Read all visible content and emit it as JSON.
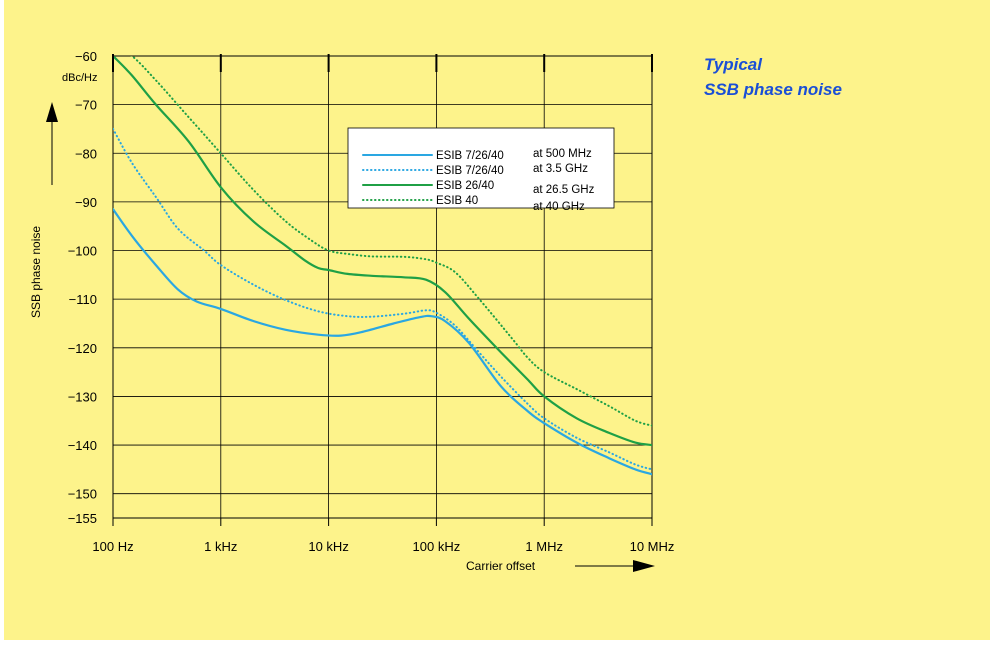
{
  "side_title": {
    "line1": "Typical",
    "line2": "SSB phase noise"
  },
  "colors": {
    "background": "#fdf38b",
    "title": "#1a4fd6",
    "blue": "#2aa7e2",
    "green": "#1fa046",
    "grid": "#000000"
  },
  "chart_data": {
    "type": "line",
    "title": "",
    "xlabel": "Carrier offset",
    "ylabel": "SSB phase noise",
    "yunit": "dBc/Hz",
    "x_scale": "log",
    "xlim": [
      100,
      10000000
    ],
    "ylim": [
      -155,
      -60
    ],
    "x_ticks": [
      {
        "value": 100,
        "label": "100 Hz"
      },
      {
        "value": 1000,
        "label": "1 kHz"
      },
      {
        "value": 10000,
        "label": "10 kHz"
      },
      {
        "value": 100000,
        "label": "100 kHz"
      },
      {
        "value": 1000000,
        "label": "1 MHz"
      },
      {
        "value": 10000000,
        "label": "10 MHz"
      }
    ],
    "y_ticks": [
      -60,
      -70,
      -80,
      -90,
      -100,
      -110,
      -120,
      -130,
      -140,
      -150,
      -155
    ],
    "y_tick_labels": [
      "−60",
      "−70",
      "−80",
      "−90",
      "−100",
      "−110",
      "−120",
      "−130",
      "−140",
      "−150",
      "−155"
    ],
    "grid": true,
    "legend_position": "upper-center",
    "series": [
      {
        "name": "ESIB 7/26/40",
        "note": "at 500 MHz",
        "color": "#2aa7e2",
        "style": "solid",
        "points": [
          [
            100,
            -91.5
          ],
          [
            150,
            -97
          ],
          [
            250,
            -103
          ],
          [
            400,
            -108
          ],
          [
            600,
            -110.5
          ],
          [
            1000,
            -112
          ],
          [
            2000,
            -114.5
          ],
          [
            4000,
            -116.3
          ],
          [
            8000,
            -117.3
          ],
          [
            13000,
            -117.5
          ],
          [
            20000,
            -116.8
          ],
          [
            40000,
            -115
          ],
          [
            70000,
            -113.7
          ],
          [
            90000,
            -113.5
          ],
          [
            120000,
            -114.5
          ],
          [
            200000,
            -119
          ],
          [
            400000,
            -128
          ],
          [
            700000,
            -133
          ],
          [
            1000000,
            -135.5
          ],
          [
            2000000,
            -139.5
          ],
          [
            4000000,
            -142.7
          ],
          [
            7000000,
            -145
          ],
          [
            10000000,
            -146
          ]
        ]
      },
      {
        "name": "ESIB 7/26/40",
        "note": "at 3.5 GHz",
        "color": "#2aa7e2",
        "style": "dotted",
        "points": [
          [
            100,
            -75
          ],
          [
            150,
            -82
          ],
          [
            250,
            -89
          ],
          [
            400,
            -95.5
          ],
          [
            700,
            -100
          ],
          [
            1000,
            -103
          ],
          [
            2000,
            -107
          ],
          [
            4000,
            -110.2
          ],
          [
            8000,
            -112.5
          ],
          [
            15000,
            -113.5
          ],
          [
            25000,
            -113.6
          ],
          [
            50000,
            -113
          ],
          [
            80000,
            -112.3
          ],
          [
            100000,
            -112.8
          ],
          [
            150000,
            -115.5
          ],
          [
            250000,
            -121
          ],
          [
            400000,
            -126
          ],
          [
            700000,
            -131.5
          ],
          [
            1000000,
            -134.5
          ],
          [
            2000000,
            -138.5
          ],
          [
            4000000,
            -141.5
          ],
          [
            7000000,
            -144
          ],
          [
            10000000,
            -145
          ]
        ]
      },
      {
        "name": "ESIB 26/40",
        "note": "at 26.5 GHz",
        "color": "#1fa046",
        "style": "solid",
        "points": [
          [
            100,
            -60
          ],
          [
            150,
            -64
          ],
          [
            250,
            -70
          ],
          [
            500,
            -77.5
          ],
          [
            1000,
            -87
          ],
          [
            2000,
            -94
          ],
          [
            4000,
            -99
          ],
          [
            6000,
            -102
          ],
          [
            8000,
            -103.6
          ],
          [
            10000,
            -104
          ],
          [
            15000,
            -104.8
          ],
          [
            25000,
            -105.2
          ],
          [
            50000,
            -105.5
          ],
          [
            80000,
            -106
          ],
          [
            120000,
            -108.5
          ],
          [
            200000,
            -114
          ],
          [
            400000,
            -121
          ],
          [
            700000,
            -126.5
          ],
          [
            1000000,
            -130
          ],
          [
            2000000,
            -134.5
          ],
          [
            4000000,
            -137.5
          ],
          [
            7000000,
            -139.5
          ],
          [
            10000000,
            -140
          ]
        ]
      },
      {
        "name": "ESIB 40",
        "note": "at 40 GHz",
        "color": "#1fa046",
        "style": "dotted",
        "points": [
          [
            100,
            -58
          ],
          [
            150,
            -60
          ],
          [
            250,
            -65
          ],
          [
            500,
            -72.5
          ],
          [
            1000,
            -80
          ],
          [
            2000,
            -87.5
          ],
          [
            4000,
            -94
          ],
          [
            7000,
            -98
          ],
          [
            10000,
            -100
          ],
          [
            15000,
            -100.7
          ],
          [
            25000,
            -101.2
          ],
          [
            50000,
            -101.3
          ],
          [
            80000,
            -101.8
          ],
          [
            100000,
            -102.5
          ],
          [
            150000,
            -104.5
          ],
          [
            250000,
            -110
          ],
          [
            500000,
            -118
          ],
          [
            700000,
            -122
          ],
          [
            1000000,
            -125
          ],
          [
            2000000,
            -128.5
          ],
          [
            4000000,
            -132
          ],
          [
            7000000,
            -135
          ],
          [
            10000000,
            -136
          ]
        ]
      }
    ]
  }
}
